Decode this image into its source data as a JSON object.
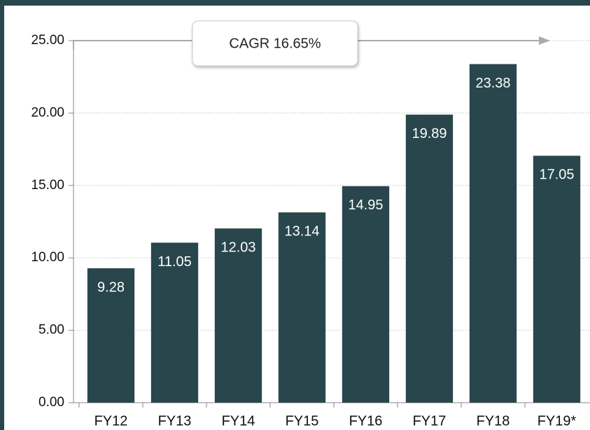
{
  "chart_data": {
    "type": "bar",
    "categories": [
      "FY12",
      "FY13",
      "FY14",
      "FY15",
      "FY16",
      "FY17",
      "FY18",
      "FY19*"
    ],
    "values": [
      9.28,
      11.05,
      12.03,
      13.14,
      14.95,
      19.89,
      23.38,
      17.05
    ],
    "color": "#29464d",
    "ylim": [
      0,
      25
    ],
    "yticks": [
      {
        "value": 0,
        "label": "0.00"
      },
      {
        "value": 5,
        "label": "5.00"
      },
      {
        "value": 10,
        "label": "10.00"
      },
      {
        "value": 15,
        "label": "15.00"
      },
      {
        "value": 20,
        "label": "20.00"
      },
      {
        "value": 25,
        "label": "25.00"
      }
    ],
    "grid": true,
    "annotation": "CAGR 16.65%"
  }
}
